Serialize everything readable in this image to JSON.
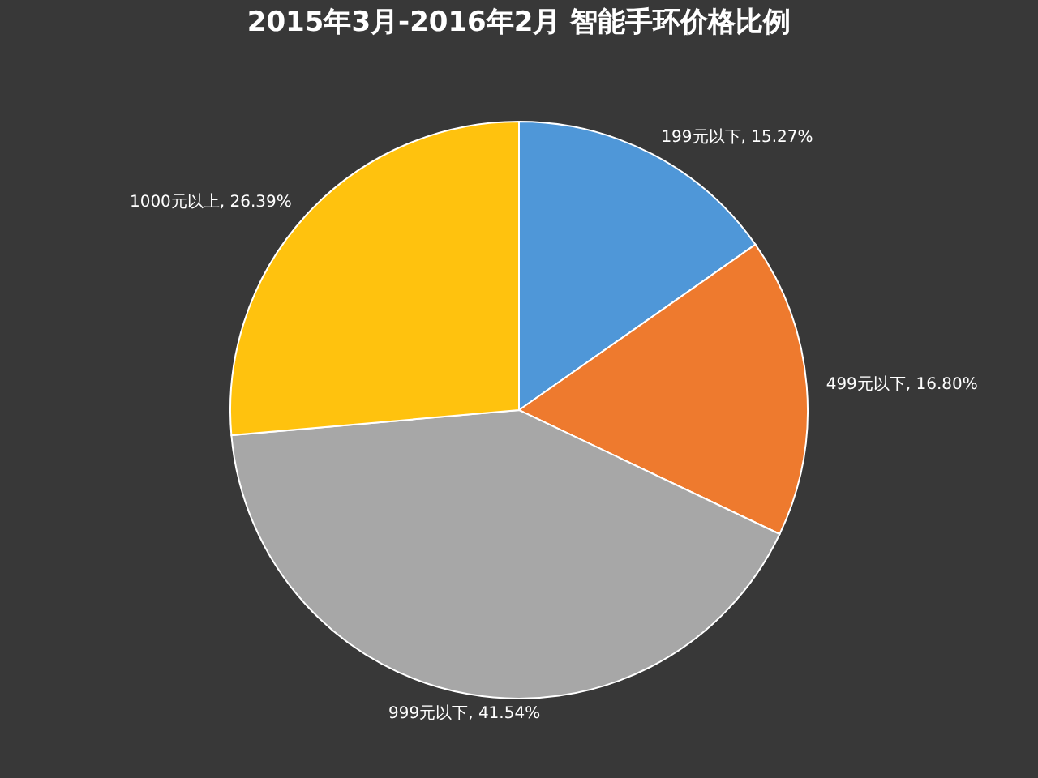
{
  "chart_data": {
    "type": "pie",
    "title": "2015年3月-2016年2月  智能手环价格比例",
    "categories": [
      "199元以下",
      "499元以下",
      "999元以下",
      "1000元以上"
    ],
    "values": [
      15.27,
      16.8,
      41.54,
      26.39
    ],
    "colors": [
      "#4f97d8",
      "#ee7a2e",
      "#a7a7a7",
      "#ffc20e"
    ],
    "value_labels": [
      "15.27%",
      "16.80%",
      "41.54%",
      "26.39%"
    ],
    "legend": false
  }
}
